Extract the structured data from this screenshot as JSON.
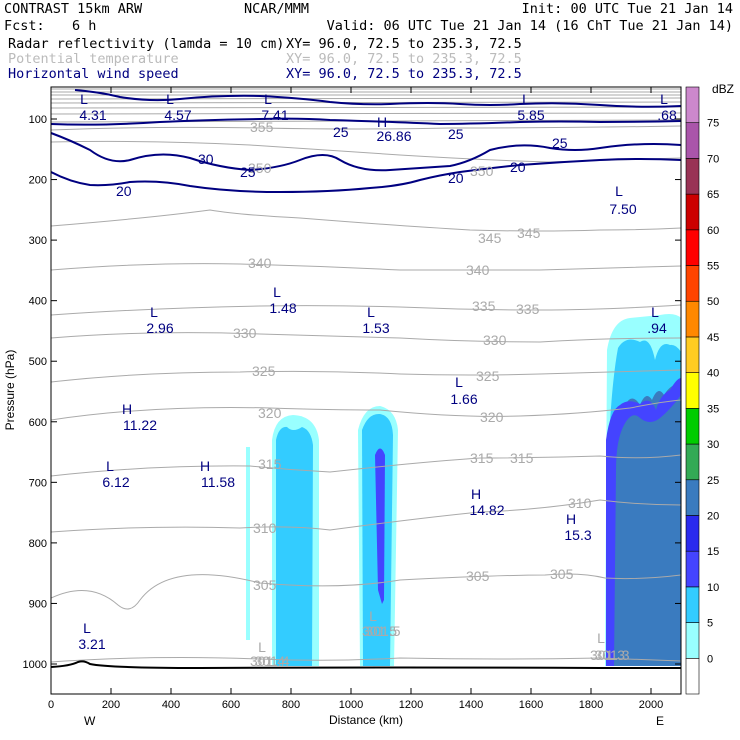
{
  "header": {
    "title": "CONTRAST 15km ARW",
    "center": "NCAR/MMM",
    "init": "Init: 00 UTC Tue 21 Jan 14",
    "fcst_label": "Fcst:",
    "fcst_value": "6 h",
    "valid": "Valid: 06 UTC Tue 21 Jan 14 (16 ChT Tue 21 Jan 14)"
  },
  "fields": [
    {
      "name": "Radar reflectivity (lamda = 10 cm)",
      "xy": "XY=  96.0, 72.5 to 235.3, 72.5",
      "color": "#000000"
    },
    {
      "name": "Potential temperature",
      "xy": "XY=  96.0, 72.5 to 235.3, 72.5",
      "color": "#bbbbbb"
    },
    {
      "name": "Horizontal wind speed",
      "xy": "XY=  96.0, 72.5 to 235.3, 72.5",
      "color": "#000080"
    }
  ],
  "chart_data": {
    "type": "cross-section",
    "xlabel": "Distance (km)",
    "ylabel": "Pressure (hPa)",
    "xlim": [
      0,
      2100
    ],
    "ylim": [
      1050,
      50
    ],
    "x_ticks": [
      "0",
      "200",
      "400",
      "600",
      "800",
      "1000",
      "1200",
      "1400",
      "1600",
      "1800",
      "2000"
    ],
    "y_ticks": [
      "100",
      "200",
      "300",
      "400",
      "500",
      "600",
      "700",
      "800",
      "900",
      "1000"
    ],
    "direction_labels": {
      "left": "W",
      "right": "E"
    },
    "colorbar": {
      "units": "dBZ",
      "levels": [
        "0",
        "5",
        "10",
        "15",
        "20",
        "25",
        "30",
        "35",
        "40",
        "45",
        "50",
        "55",
        "60",
        "65",
        "70",
        "75"
      ],
      "colors": [
        "#ffffff",
        "#99ffff",
        "#33ccff",
        "#4444ff",
        "#2a2aee",
        "#3a7bbf",
        "#33aa55",
        "#00cc00",
        "#ffff00",
        "#ffcc22",
        "#ff8800",
        "#ff4400",
        "#ff0000",
        "#cc0000",
        "#993355",
        "#aa55aa",
        "#cc88cc"
      ]
    },
    "reflectivity_cells": [
      {
        "x_range": [
          640,
          660
        ],
        "top_hPa": 650,
        "max_dBZ": 5
      },
      {
        "x_range": [
          740,
          890
        ],
        "top_hPa": 590,
        "max_dBZ": 10
      },
      {
        "x_range": [
          1030,
          1140
        ],
        "top_hPa": 580,
        "max_dBZ": 15
      },
      {
        "x_range": [
          1840,
          2100
        ],
        "top_hPa": 430,
        "max_dBZ": 20
      }
    ],
    "theta_contours": {
      "color": "#aaaaaa",
      "labels": [
        "301.4",
        "301.5",
        "301.3",
        "305",
        "305",
        "305",
        "310",
        "310",
        "315",
        "315",
        "315",
        "320",
        "320",
        "325",
        "325",
        "330",
        "330",
        "335",
        "335",
        "340",
        "340",
        "345",
        "345",
        "350",
        "350",
        "355"
      ]
    },
    "wind_contours": {
      "color": "#000080",
      "labels": [
        "20",
        "20",
        "20",
        "25",
        "25",
        "25",
        "25",
        "30"
      ]
    },
    "extrema": [
      {
        "type": "L",
        "value": "4.31"
      },
      {
        "type": "L",
        "value": "4.57"
      },
      {
        "type": "L",
        "value": "7.41"
      },
      {
        "type": "H",
        "value": "26.86"
      },
      {
        "type": "L",
        "value": "5.85"
      },
      {
        "type": "L",
        "value": ".68"
      },
      {
        "type": "L",
        "value": "7.50"
      },
      {
        "type": "L",
        "value": "2.96"
      },
      {
        "type": "L",
        "value": "1.48"
      },
      {
        "type": "L",
        "value": "1.53"
      },
      {
        "type": "L",
        "value": ".94"
      },
      {
        "type": "L",
        "value": "1.66"
      },
      {
        "type": "H",
        "value": "11.22"
      },
      {
        "type": "L",
        "value": "6.12"
      },
      {
        "type": "H",
        "value": "11.58"
      },
      {
        "type": "H",
        "value": "14.82"
      },
      {
        "type": "H",
        "value": "15.3"
      },
      {
        "type": "L",
        "value": "3.21"
      },
      {
        "type": "L",
        "value": "301.4"
      },
      {
        "type": "L",
        "value": "301.5"
      },
      {
        "type": "L",
        "value": "301.3"
      }
    ]
  }
}
